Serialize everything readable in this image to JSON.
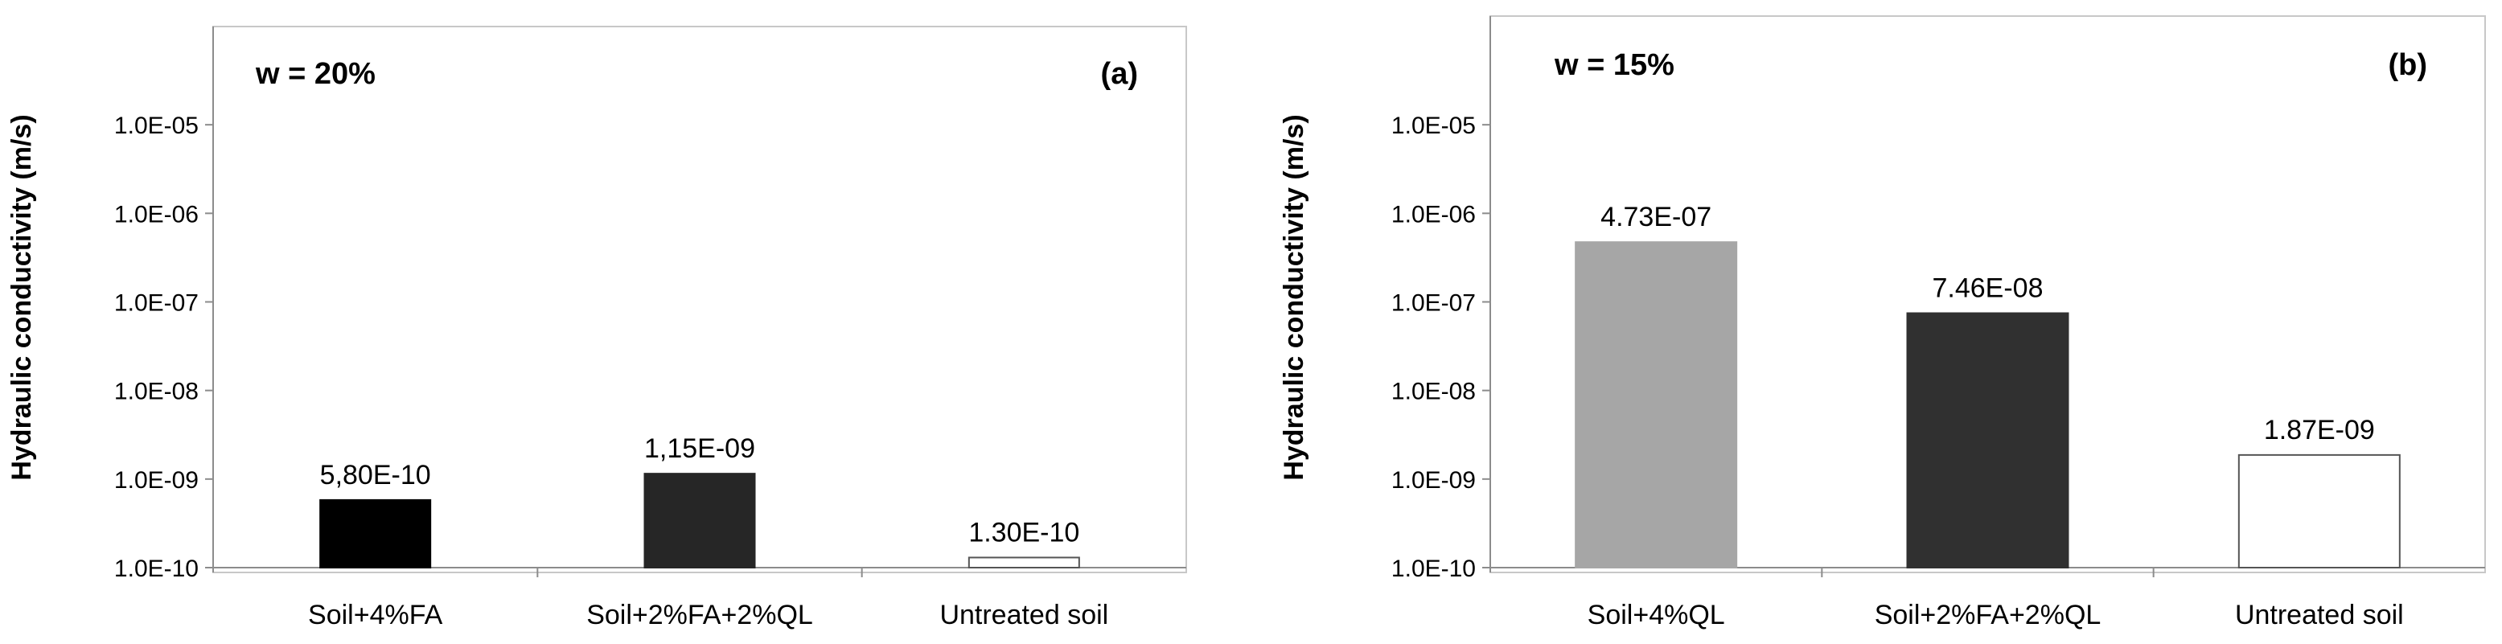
{
  "chart_data": [
    {
      "type": "bar",
      "panel_tag": "(a)",
      "inset_label": "w = 20%",
      "ylabel": "Hydraulic conductivity (m/s)",
      "yscale": "log",
      "ylim": [
        1e-10,
        0.0001
      ],
      "yticks": [
        "1.0E-10",
        "1.0E-09",
        "1.0E-08",
        "1.0E-07",
        "1.0E-06",
        "1.0E-05"
      ],
      "grid": false,
      "categories": [
        "Soil+4%FA",
        "Soil+2%FA+2%QL",
        "Untreated soil"
      ],
      "values": [
        5.8e-10,
        1.15e-09,
        1.3e-10
      ],
      "data_labels": [
        "5,80E-10",
        "1,15E-09",
        "1.30E-10"
      ],
      "colors": [
        "#000000",
        "#262626",
        "#ffffff"
      ]
    },
    {
      "type": "bar",
      "panel_tag": "(b)",
      "inset_label": "w = 15%",
      "ylabel": "Hydraulic conductivity (m/s)",
      "yscale": "log",
      "ylim": [
        1e-10,
        0.0001
      ],
      "yticks": [
        "1.0E-10",
        "1.0E-09",
        "1.0E-08",
        "1.0E-07",
        "1.0E-06",
        "1.0E-05"
      ],
      "grid": false,
      "categories": [
        "Soil+4%QL",
        "Soil+2%FA+2%QL",
        "Untreated soil"
      ],
      "values": [
        4.73e-07,
        7.46e-08,
        1.87e-09
      ],
      "data_labels": [
        "4.73E-07",
        "7.46E-08",
        "1.87E-09"
      ],
      "colors": [
        "#a6a6a6",
        "#303030",
        "#ffffff"
      ]
    }
  ]
}
